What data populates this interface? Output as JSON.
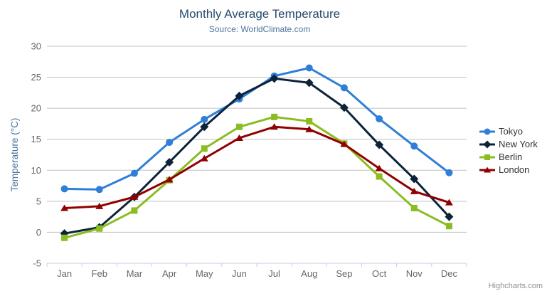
{
  "chart_data": {
    "type": "line",
    "title": "Monthly Average Temperature",
    "subtitle": "Source: WorldClimate.com",
    "categories": [
      "Jan",
      "Feb",
      "Mar",
      "Apr",
      "May",
      "Jun",
      "Jul",
      "Aug",
      "Sep",
      "Oct",
      "Nov",
      "Dec"
    ],
    "series": [
      {
        "name": "Tokyo",
        "color": "#2f7ed8",
        "marker": "circle",
        "values": [
          7.0,
          6.9,
          9.5,
          14.5,
          18.2,
          21.5,
          25.2,
          26.5,
          23.3,
          18.3,
          13.9,
          9.6
        ]
      },
      {
        "name": "New York",
        "color": "#0d233a",
        "marker": "diamond",
        "values": [
          -0.2,
          0.8,
          5.7,
          11.3,
          17.0,
          22.0,
          24.8,
          24.1,
          20.1,
          14.1,
          8.6,
          2.5
        ]
      },
      {
        "name": "Berlin",
        "color": "#8bbc21",
        "marker": "square",
        "values": [
          -0.9,
          0.6,
          3.5,
          8.4,
          13.5,
          17.0,
          18.6,
          17.9,
          14.3,
          9.0,
          3.9,
          1.0
        ]
      },
      {
        "name": "London",
        "color": "#910000",
        "marker": "triangle",
        "values": [
          3.9,
          4.2,
          5.7,
          8.5,
          11.9,
          15.2,
          17.0,
          16.6,
          14.2,
          10.3,
          6.6,
          4.8
        ]
      }
    ],
    "xlabel": "",
    "ylabel": "Temperature (°C)",
    "ylim": [
      -5,
      30
    ],
    "ytick_step": 5,
    "grid": true,
    "legend_position": "right"
  },
  "credits": {
    "label": "Highcharts.com"
  },
  "icons": {
    "menu": "hamburger-icon"
  },
  "colors": {
    "title": "#274b6d",
    "subtitle": "#4d759e",
    "axis_title": "#4d759e",
    "axis_label": "#666666",
    "grid": "#c0c0c0",
    "axis_line": "#c0d0e0",
    "legend_text": "#333333",
    "credits": "#909090",
    "menu_icon": "#666666"
  }
}
